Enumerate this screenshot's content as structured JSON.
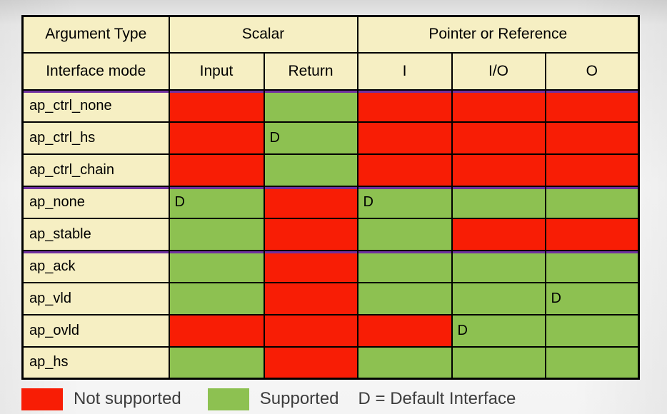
{
  "table": {
    "corner": {
      "row1": "Argument Type",
      "row2": "Interface mode"
    },
    "groups": [
      {
        "label": "Scalar",
        "cols": [
          "Input",
          "Return"
        ]
      },
      {
        "label": "Pointer or Reference",
        "cols": [
          "I",
          "I/O",
          "O"
        ]
      }
    ],
    "col_keys": [
      "input",
      "return",
      "i",
      "io",
      "o"
    ],
    "rows": [
      {
        "mode": "ap_ctrl_none",
        "group_start": true,
        "cells": [
          {
            "supported": false
          },
          {
            "supported": true
          },
          {
            "supported": false
          },
          {
            "supported": false
          },
          {
            "supported": false
          }
        ]
      },
      {
        "mode": "ap_ctrl_hs",
        "group_start": false,
        "cells": [
          {
            "supported": false
          },
          {
            "supported": true,
            "mark": "D"
          },
          {
            "supported": false
          },
          {
            "supported": false
          },
          {
            "supported": false
          }
        ]
      },
      {
        "mode": "ap_ctrl_chain",
        "group_start": false,
        "cells": [
          {
            "supported": false
          },
          {
            "supported": true
          },
          {
            "supported": false
          },
          {
            "supported": false
          },
          {
            "supported": false
          }
        ]
      },
      {
        "mode": "ap_none",
        "group_start": true,
        "cells": [
          {
            "supported": true,
            "mark": "D"
          },
          {
            "supported": false
          },
          {
            "supported": true,
            "mark": "D"
          },
          {
            "supported": true
          },
          {
            "supported": true
          }
        ]
      },
      {
        "mode": "ap_stable",
        "group_start": false,
        "cells": [
          {
            "supported": true
          },
          {
            "supported": false
          },
          {
            "supported": true
          },
          {
            "supported": false
          },
          {
            "supported": false
          }
        ]
      },
      {
        "mode": "ap_ack",
        "group_start": true,
        "cells": [
          {
            "supported": true
          },
          {
            "supported": false
          },
          {
            "supported": true
          },
          {
            "supported": true
          },
          {
            "supported": true
          }
        ]
      },
      {
        "mode": "ap_vld",
        "group_start": false,
        "cells": [
          {
            "supported": true
          },
          {
            "supported": false
          },
          {
            "supported": true
          },
          {
            "supported": true
          },
          {
            "supported": true,
            "mark": "D"
          }
        ]
      },
      {
        "mode": "ap_ovld",
        "group_start": false,
        "cells": [
          {
            "supported": false
          },
          {
            "supported": false
          },
          {
            "supported": false
          },
          {
            "supported": true,
            "mark": "D"
          },
          {
            "supported": true
          }
        ]
      },
      {
        "mode": "ap_hs",
        "group_start": false,
        "cells": [
          {
            "supported": true
          },
          {
            "supported": false
          },
          {
            "supported": true
          },
          {
            "supported": true
          },
          {
            "supported": true
          }
        ]
      }
    ]
  },
  "legend": {
    "not_supported": "Not supported",
    "supported": "Supported",
    "default_note": "D = Default Interface"
  },
  "colors": {
    "not_supported": "#f81d05",
    "supported": "#8dc151",
    "header_bg": "#f6efc3",
    "group_separator": "#7030a0",
    "grid": "#000000"
  }
}
